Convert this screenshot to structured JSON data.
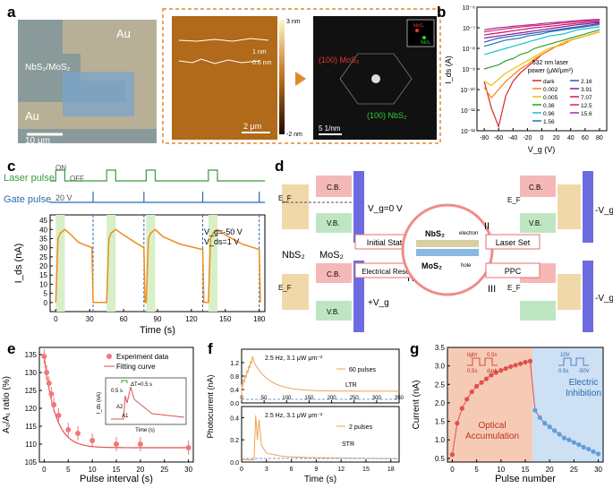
{
  "panel_labels": {
    "a": "a",
    "b": "b",
    "c": "c",
    "d": "d",
    "e": "e",
    "f": "f",
    "g": "g"
  },
  "panel_a": {
    "au_top": "Au",
    "au_bottom": "Au",
    "material": "NbS₂/MoS₂",
    "scale_left": "10 μm",
    "afm_scale_max": "3 nm",
    "afm_scale_min": "-2 nm",
    "afm_scale_bar": "2 μm",
    "step_1": "1 nm",
    "step_2": "0.6 nm",
    "saed_mos2": "(100) MoS₂",
    "saed_nbs2": "(100) NbS₂",
    "saed_scale": "5 1/nm",
    "inset_mos2": "MoS₂",
    "inset_nbs2": "NbS₂"
  },
  "panel_b": {
    "chart_data": {
      "type": "line",
      "xlabel": "V_g (V)",
      "ylabel": "I_ds (A)",
      "xlim": [
        -90,
        90
      ],
      "ylim_log10": [
        -12,
        -6
      ],
      "y_scale": "log",
      "xticks": [
        -80,
        -60,
        -40,
        -20,
        0,
        20,
        40,
        60,
        80
      ],
      "yticks": [
        "10⁻¹²",
        "10⁻¹¹",
        "10⁻¹⁰",
        "10⁻⁹",
        "10⁻⁸",
        "10⁻⁷",
        "10⁻⁶"
      ],
      "legend_title_1": "532 nm laser",
      "legend_title_2": "power (μW/μm²)",
      "x": [
        -80,
        -70,
        -60,
        -50,
        -40,
        -30,
        -20,
        -10,
        0,
        10,
        20,
        30,
        40,
        50,
        60,
        70,
        80
      ],
      "series": [
        {
          "name": "dark",
          "color": "#d62728",
          "log10": [
            -9.6,
            -10.9,
            -11.8,
            -10.3,
            -9.6,
            -9.2,
            -8.9,
            -8.6,
            -8.3,
            -8.1,
            -7.9,
            -7.8,
            -7.6,
            -7.5,
            -7.4,
            -7.3,
            -7.2
          ]
        },
        {
          "name": "0.002",
          "color": "#ff7f0e",
          "log10": [
            -9.9,
            -10.4,
            -10.0,
            -9.6,
            -9.3,
            -9.0,
            -8.8,
            -8.5,
            -8.3,
            -8.1,
            -7.9,
            -7.8,
            -7.6,
            -7.5,
            -7.4,
            -7.3,
            -7.2
          ]
        },
        {
          "name": "0.005",
          "color": "#e8c400",
          "log10": [
            -9.6,
            -9.8,
            -9.5,
            -9.2,
            -9.0,
            -8.8,
            -8.6,
            -8.4,
            -8.2,
            -8.0,
            -7.9,
            -7.7,
            -7.6,
            -7.5,
            -7.4,
            -7.3,
            -7.2
          ]
        },
        {
          "name": "0.36",
          "color": "#2ca02c",
          "log10": [
            -9.0,
            -8.9,
            -8.8,
            -8.6,
            -8.5,
            -8.3,
            -8.2,
            -8.0,
            -7.9,
            -7.8,
            -7.7,
            -7.6,
            -7.5,
            -7.4,
            -7.3,
            -7.2,
            -7.1
          ]
        },
        {
          "name": "0.96",
          "color": "#17becf",
          "log10": [
            -8.3,
            -8.2,
            -8.1,
            -8.0,
            -7.9,
            -7.8,
            -7.7,
            -7.6,
            -7.5,
            -7.4,
            -7.35,
            -7.3,
            -7.2,
            -7.1,
            -7.05,
            -7.0,
            -6.95
          ]
        },
        {
          "name": "1.56",
          "color": "#1f77b4",
          "log10": [
            -7.9,
            -7.8,
            -7.7,
            -7.6,
            -7.55,
            -7.5,
            -7.4,
            -7.35,
            -7.3,
            -7.2,
            -7.15,
            -7.1,
            -7.05,
            -7.0,
            -6.95,
            -6.9,
            -6.85
          ]
        },
        {
          "name": "2.16",
          "color": "#3f51b5",
          "log10": [
            -7.7,
            -7.6,
            -7.5,
            -7.45,
            -7.4,
            -7.35,
            -7.3,
            -7.25,
            -7.2,
            -7.15,
            -7.1,
            -7.05,
            -7.0,
            -6.95,
            -6.9,
            -6.85,
            -6.8
          ]
        },
        {
          "name": "3.91",
          "color": "#7b1fa2",
          "log10": [
            -7.5,
            -7.45,
            -7.4,
            -7.35,
            -7.3,
            -7.25,
            -7.2,
            -7.15,
            -7.1,
            -7.05,
            -7.0,
            -6.95,
            -6.9,
            -6.85,
            -6.82,
            -6.78,
            -6.75
          ]
        },
        {
          "name": "7.07",
          "color": "#c2185b",
          "log10": [
            -7.35,
            -7.3,
            -7.25,
            -7.2,
            -7.15,
            -7.1,
            -7.05,
            -7.0,
            -6.97,
            -6.93,
            -6.9,
            -6.85,
            -6.82,
            -6.78,
            -6.75,
            -6.72,
            -6.7
          ]
        },
        {
          "name": "12.5",
          "color": "#e91e63",
          "log10": [
            -7.2,
            -7.15,
            -7.1,
            -7.05,
            -7.0,
            -6.97,
            -6.93,
            -6.9,
            -6.87,
            -6.84,
            -6.8,
            -6.77,
            -6.74,
            -6.71,
            -6.68,
            -6.66,
            -6.64
          ]
        },
        {
          "name": "15.6",
          "color": "#9c27b0",
          "log10": [
            -7.1,
            -7.05,
            -7.0,
            -6.97,
            -6.93,
            -6.9,
            -6.87,
            -6.84,
            -6.8,
            -6.77,
            -6.74,
            -6.71,
            -6.68,
            -6.65,
            -6.63,
            -6.61,
            -6.59
          ]
        }
      ]
    }
  },
  "panel_c": {
    "laser_label": "Laser pulse",
    "gate_label": "Gate pulse",
    "on_label": "ON",
    "off_label": "OFF",
    "gate_v_label": "20 V",
    "vg_label": "V_g=-50 V",
    "vds_label": "V_ds=1 V",
    "chart_data": {
      "type": "line",
      "xlabel": "Time (s)",
      "ylabel": "I_ds (nA)",
      "xlim": [
        -5,
        185
      ],
      "ylim": [
        -5,
        48
      ],
      "xticks": [
        0,
        30,
        60,
        90,
        120,
        150,
        180
      ],
      "yticks": [
        0,
        5,
        10,
        15,
        20,
        25,
        30,
        35,
        40,
        45
      ],
      "laser_on_windows": [
        [
          0,
          8
        ],
        [
          45,
          53
        ],
        [
          80,
          88
        ],
        [
          135,
          143
        ]
      ],
      "gate_pulse_times": [
        33,
        78,
        130,
        180
      ],
      "x": [
        0,
        2,
        4,
        8,
        12,
        20,
        32,
        33,
        45,
        47,
        49,
        53,
        60,
        70,
        78,
        79,
        80,
        82,
        84,
        88,
        95,
        110,
        130,
        131,
        135,
        137,
        139,
        143,
        150,
        165,
        180,
        181
      ],
      "y": [
        0,
        35,
        38,
        40,
        38,
        33,
        30,
        0,
        0,
        35,
        38,
        40,
        37,
        33,
        30,
        0,
        0,
        35,
        38,
        40,
        36,
        32,
        29,
        0,
        0,
        35,
        38,
        40,
        37,
        32,
        29,
        0
      ]
    }
  },
  "panel_d": {
    "nbs2": "NbS₂",
    "mos2": "MoS₂",
    "cb": "C.B.",
    "vb": "V.B.",
    "ef": "E_F",
    "state1": "Initial State",
    "state2": "Laser Set",
    "state3": "PPC",
    "state4": "Electrical Reset",
    "rn1": "I",
    "rn2": "II",
    "rn3": "III",
    "rn4": "IV",
    "vg0": "V_g=0 V",
    "minus_vg": "-V_g",
    "plus_vg": "+V_g",
    "center_top": "NbS₂",
    "center_bottom": "MoS₂",
    "electron": "electron",
    "hole": "hole"
  },
  "panel_e": {
    "chart_data": {
      "type": "scatter",
      "xlabel": "Pulse interval (s)",
      "ylabel": "A₂/A₁ ratio (%)",
      "xlim": [
        -1,
        31
      ],
      "ylim": [
        105,
        137
      ],
      "xticks": [
        0,
        5,
        10,
        15,
        20,
        25,
        30
      ],
      "yticks": [
        105,
        110,
        115,
        120,
        125,
        130,
        135
      ],
      "x": [
        0,
        0.5,
        1,
        1.5,
        2,
        3,
        5,
        7,
        10,
        15,
        20,
        30
      ],
      "y": [
        134.5,
        130,
        127,
        124,
        121,
        118,
        114,
        113,
        111,
        110,
        110,
        109
      ],
      "err": [
        2,
        2,
        2,
        2,
        2,
        2,
        2,
        2,
        2,
        2,
        2,
        2
      ],
      "legend": [
        "Experiment data",
        "Fitting curve"
      ],
      "inset": {
        "xlabel": "Time (s)",
        "ylabel": "I_ds (nA)",
        "yticks": [
          0,
          40,
          80,
          120
        ],
        "xticks": [
          0,
          5,
          10,
          15
        ],
        "dt_label": "ΔT=0.5 s",
        "pulse_label": "0.5 s",
        "a1": "A1",
        "a2": "A2"
      }
    }
  },
  "panel_f": {
    "top": {
      "condition": "2.5 Hz, 3.1 μW μm⁻²",
      "legend": "60 pulses",
      "tag": "LTR",
      "xlim": [
        0,
        350
      ],
      "xticks": [
        0,
        50,
        100,
        150,
        200,
        250,
        300,
        350
      ],
      "ylim": [
        0,
        1.6
      ],
      "yticks": [
        0.0,
        0.4,
        0.8,
        1.2
      ]
    },
    "bottom": {
      "condition": "2.5 Hz, 3.1 μW μm⁻²",
      "legend": "2 pulses",
      "tag": "STR",
      "xlim": [
        0,
        19
      ],
      "xticks": [
        0,
        3,
        6,
        9,
        12,
        15,
        18
      ],
      "ylim": [
        0,
        0.5
      ],
      "yticks": [
        0.0,
        0.2,
        0.4
      ]
    },
    "xlabel": "Time (s)",
    "ylabel": "Photocurrent (nA)"
  },
  "panel_g": {
    "chart_data": {
      "type": "scatter",
      "xlabel": "Pulse number",
      "ylabel": "Current (nA)",
      "xlim": [
        -1,
        31
      ],
      "ylim": [
        0.4,
        3.5
      ],
      "xticks": [
        0,
        5,
        10,
        15,
        20,
        25,
        30
      ],
      "yticks": [
        0.5,
        1.0,
        1.5,
        2.0,
        2.5,
        3.0,
        3.5
      ],
      "x": [
        0,
        1,
        2,
        3,
        4,
        5,
        6,
        7,
        8,
        9,
        10,
        11,
        12,
        13,
        14,
        15,
        16,
        17,
        18,
        19,
        20,
        21,
        22,
        23,
        24,
        25,
        26,
        27,
        28,
        29,
        30
      ],
      "y": [
        0.6,
        1.45,
        1.85,
        2.1,
        2.3,
        2.45,
        2.55,
        2.65,
        2.75,
        2.82,
        2.88,
        2.93,
        2.98,
        3.02,
        3.06,
        3.1,
        3.13,
        1.8,
        1.6,
        1.45,
        1.35,
        1.25,
        1.15,
        1.05,
        1.0,
        0.93,
        0.87,
        0.8,
        0.75,
        0.68,
        0.62
      ],
      "opt_label_1": "Optical",
      "opt_label_2": "Accumulation",
      "ele_label_1": "Electric",
      "ele_label_2": "Inhibition",
      "light": "light",
      "dark": "dark",
      "t05": "0.5s",
      "t05b": "0.5s",
      "v10": "10V",
      "vm50": "-50V",
      "t05c": "0.5s"
    }
  }
}
